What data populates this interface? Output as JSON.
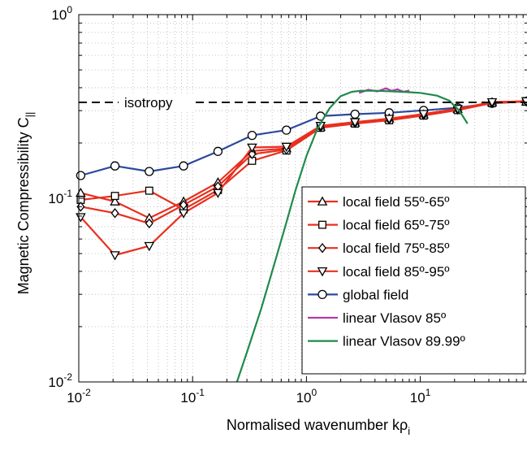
{
  "chart_data": {
    "type": "line",
    "title": "",
    "xlabel": "Normalised wavenumber kρ",
    "xlabel_sub": "i",
    "ylabel": "Magnetic Compressibility C",
    "ylabel_sub": "||",
    "xscale": "log",
    "yscale": "log",
    "xlim": [
      0.01,
      88
    ],
    "ylim": [
      0.01,
      1
    ],
    "grid": "dotted",
    "x_ticks": [
      {
        "base": "10",
        "exp": "-2",
        "value": 0.01
      },
      {
        "base": "10",
        "exp": "-1",
        "value": 0.1
      },
      {
        "base": "10",
        "exp": "0",
        "value": 1
      },
      {
        "base": "10",
        "exp": "1",
        "value": 10
      }
    ],
    "y_ticks": [
      {
        "base": "10",
        "exp": "-2",
        "value": 0.01
      },
      {
        "base": "10",
        "exp": "-1",
        "value": 0.1
      },
      {
        "base": "10",
        "exp": "0",
        "value": 1
      }
    ],
    "annotations": [
      {
        "text": "isotropy",
        "y": 0.333,
        "style": "dashed",
        "color": "#000000"
      }
    ],
    "legend_position": "lower-right",
    "series": [
      {
        "name": "local field 55º-65º",
        "color": "#e8301f",
        "marker": "triangle-up",
        "x": [
          0.0104,
          0.0208,
          0.0416,
          0.0833,
          0.167,
          0.333,
          0.667,
          1.33,
          2.67,
          5.33,
          10.7,
          21.3,
          42.7,
          85.3
        ],
        "y": [
          0.107,
          0.096,
          0.078,
          0.096,
          0.122,
          0.181,
          0.187,
          0.245,
          0.258,
          0.272,
          0.286,
          0.306,
          0.333,
          0.336
        ]
      },
      {
        "name": "local field 65º-75º",
        "color": "#e8301f",
        "marker": "square",
        "x": [
          0.0104,
          0.0208,
          0.0416,
          0.0833,
          0.167,
          0.333,
          0.667,
          1.33,
          2.67,
          5.33,
          10.7,
          21.3,
          42.7,
          85.3
        ],
        "y": [
          0.098,
          0.103,
          0.11,
          0.087,
          0.111,
          0.16,
          0.182,
          0.242,
          0.255,
          0.266,
          0.282,
          0.302,
          0.33,
          0.336
        ]
      },
      {
        "name": "local field 75º-85º",
        "color": "#e8301f",
        "marker": "diamond",
        "x": [
          0.0104,
          0.0208,
          0.0416,
          0.0833,
          0.167,
          0.333,
          0.667,
          1.33,
          2.67,
          5.33,
          10.7,
          21.3,
          42.7,
          85.3
        ],
        "y": [
          0.09,
          0.083,
          0.073,
          0.092,
          0.116,
          0.174,
          0.184,
          0.244,
          0.257,
          0.269,
          0.284,
          0.304,
          0.331,
          0.337
        ]
      },
      {
        "name": "local field 85º-95º",
        "color": "#e8301f",
        "marker": "triangle-down",
        "x": [
          0.0104,
          0.0208,
          0.0416,
          0.0833,
          0.167,
          0.333,
          0.667,
          1.33,
          2.67,
          5.33,
          10.7,
          21.3,
          42.7,
          85.3
        ],
        "y": [
          0.079,
          0.049,
          0.055,
          0.083,
          0.107,
          0.189,
          0.191,
          0.248,
          0.26,
          0.271,
          0.288,
          0.307,
          0.334,
          0.338
        ]
      },
      {
        "name": "global field",
        "color": "#2b4a9e",
        "marker": "circle",
        "x": [
          0.0104,
          0.0208,
          0.0416,
          0.0833,
          0.167,
          0.333,
          0.667,
          1.33,
          2.67,
          5.33,
          10.7,
          21.3,
          42.7,
          85.3
        ],
        "y": [
          0.133,
          0.15,
          0.14,
          0.15,
          0.18,
          0.22,
          0.235,
          0.28,
          0.287,
          0.292,
          0.301,
          0.311,
          0.329,
          0.337
        ]
      },
      {
        "name": "linear Vlasov 85º",
        "color": "#b23aa8",
        "marker": "none",
        "x": [
          2.9,
          3.5,
          4.2,
          5.0,
          5.6,
          6.3,
          7.1,
          8.0
        ],
        "y": [
          0.375,
          0.39,
          0.382,
          0.397,
          0.385,
          0.392,
          0.38,
          0.386
        ]
      },
      {
        "name": "linear Vlasov 89.99º",
        "color": "#1f8a4c",
        "marker": "none",
        "x": [
          0.245,
          0.3,
          0.4,
          0.5,
          0.65,
          0.8,
          1.0,
          1.25,
          1.6,
          2.0,
          2.5,
          3.0,
          4.0,
          5.0,
          7.0,
          10.0,
          14.0,
          18.0,
          22.0,
          26.0
        ],
        "y": [
          0.01,
          0.0145,
          0.025,
          0.04,
          0.07,
          0.11,
          0.17,
          0.24,
          0.31,
          0.36,
          0.38,
          0.385,
          0.385,
          0.383,
          0.38,
          0.375,
          0.362,
          0.34,
          0.3,
          0.255
        ]
      }
    ]
  }
}
